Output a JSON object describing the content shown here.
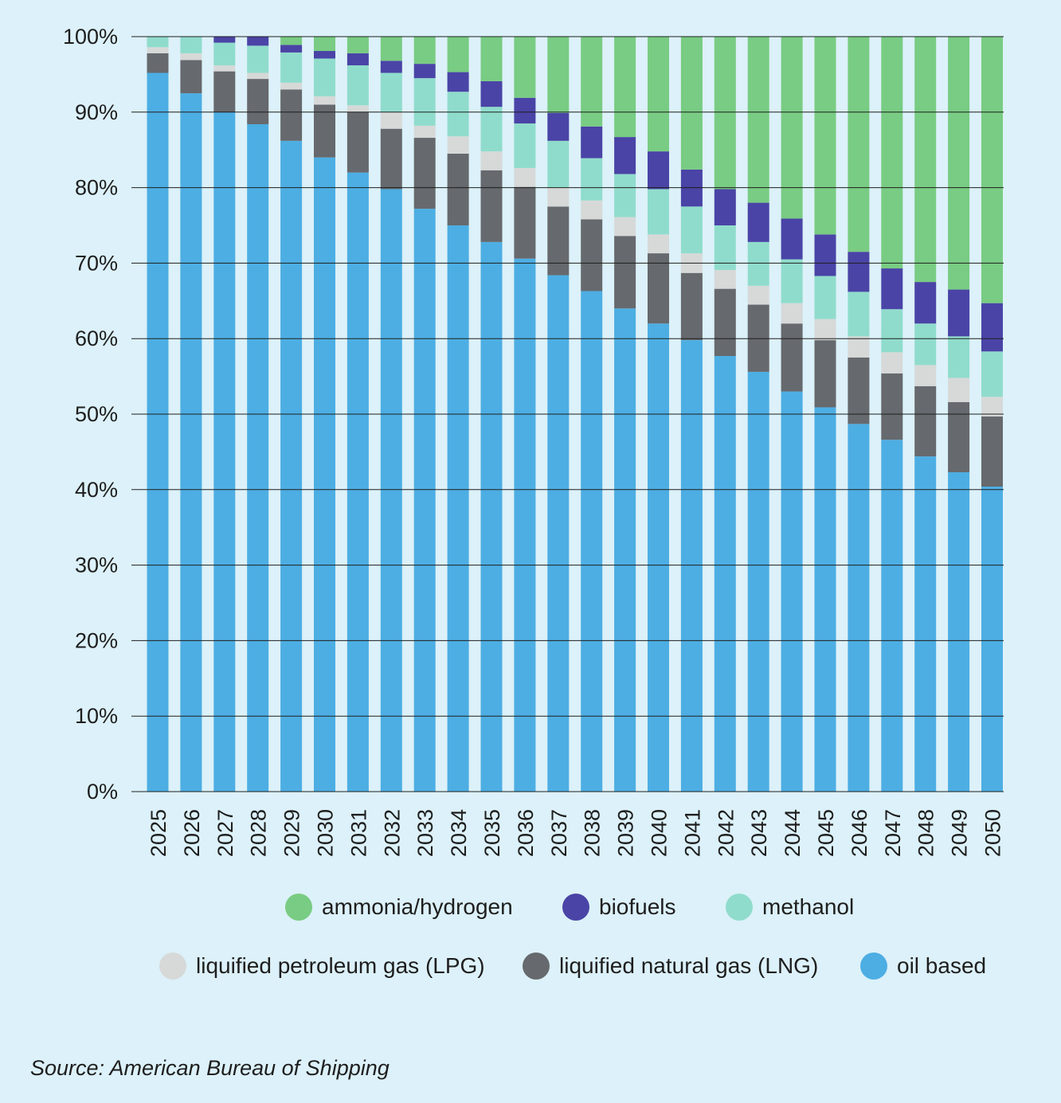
{
  "chart_data": {
    "type": "bar",
    "stacked": true,
    "title": "",
    "xlabel": "",
    "ylabel": "",
    "ylim": [
      0,
      100
    ],
    "yticks": [
      "0%",
      "10%",
      "20%",
      "30%",
      "40%",
      "50%",
      "60%",
      "70%",
      "80%",
      "90%",
      "100%"
    ],
    "grid": "horizontal",
    "legend_position": "bottom",
    "categories": [
      "2025",
      "2026",
      "2027",
      "2028",
      "2029",
      "2030",
      "2031",
      "2032",
      "2033",
      "2034",
      "2035",
      "2036",
      "2037",
      "2038",
      "2039",
      "2040",
      "2041",
      "2042",
      "2043",
      "2044",
      "2045",
      "2046",
      "2047",
      "2048",
      "2049",
      "2050"
    ],
    "series": [
      {
        "name": "oil based",
        "color": "#4daee3",
        "values": [
          95.2,
          92.5,
          90.0,
          88.4,
          86.2,
          84.0,
          82.0,
          79.8,
          77.2,
          75.0,
          72.8,
          70.6,
          68.4,
          66.3,
          64.0,
          62.0,
          59.8,
          57.7,
          55.6,
          53.0,
          50.9,
          48.7,
          46.6,
          44.4,
          42.3,
          40.4
        ]
      },
      {
        "name": "liquified natural gas (LNG)",
        "color": "#66696d",
        "values": [
          2.6,
          4.4,
          5.4,
          6.0,
          6.8,
          7.0,
          8.0,
          8.0,
          9.4,
          9.5,
          9.5,
          9.5,
          9.1,
          9.5,
          9.6,
          9.3,
          8.9,
          8.9,
          8.9,
          9.0,
          8.9,
          8.8,
          8.8,
          9.3,
          9.3,
          9.3
        ]
      },
      {
        "name": "liquified petroleum gas (LPG)",
        "color": "#d6d9d8",
        "values": [
          0.8,
          0.9,
          0.8,
          0.8,
          0.9,
          1.1,
          0.9,
          2.2,
          1.6,
          2.3,
          2.5,
          2.5,
          2.5,
          2.5,
          2.5,
          2.5,
          2.6,
          2.5,
          2.5,
          2.7,
          2.8,
          2.8,
          2.8,
          2.8,
          3.2,
          2.6
        ]
      },
      {
        "name": "methanol",
        "color": "#90dccc",
        "values": [
          1.4,
          2.2,
          3.0,
          3.6,
          4.0,
          5.0,
          5.3,
          5.2,
          6.3,
          5.9,
          5.9,
          5.9,
          6.2,
          5.6,
          5.7,
          6.0,
          6.2,
          5.9,
          5.8,
          5.8,
          5.7,
          5.9,
          5.7,
          5.5,
          5.5,
          6.0
        ]
      },
      {
        "name": "biofuels",
        "color": "#4a44a6",
        "values": [
          0.0,
          0.0,
          0.8,
          1.2,
          1.0,
          1.0,
          1.6,
          1.6,
          1.9,
          2.6,
          3.4,
          3.4,
          3.7,
          4.2,
          4.9,
          5.0,
          4.9,
          4.8,
          5.2,
          5.4,
          5.5,
          5.3,
          5.4,
          5.5,
          6.2,
          6.4
        ]
      },
      {
        "name": "ammonia/hydrogen",
        "color": "#79cc83",
        "values": [
          0.0,
          0.0,
          0.0,
          0.0,
          1.1,
          1.9,
          2.2,
          3.2,
          3.6,
          4.7,
          5.9,
          8.1,
          10.1,
          11.9,
          13.3,
          15.2,
          17.6,
          20.2,
          22.0,
          24.1,
          26.2,
          28.5,
          30.7,
          32.5,
          33.5,
          35.3
        ]
      }
    ]
  },
  "legend": {
    "row1": [
      {
        "label": "ammonia/hydrogen",
        "color": "#79cc83"
      },
      {
        "label": "biofuels",
        "color": "#4a44a6"
      },
      {
        "label": "methanol",
        "color": "#90dccc"
      }
    ],
    "row2": [
      {
        "label": "liquified petroleum gas (LPG)",
        "color": "#d6d9d8"
      },
      {
        "label": "liquified natural gas (LNG)",
        "color": "#66696d"
      },
      {
        "label": "oil based",
        "color": "#4daee3"
      }
    ]
  },
  "source": "Source: American Bureau of Shipping",
  "background_color": "#dcf1f9"
}
